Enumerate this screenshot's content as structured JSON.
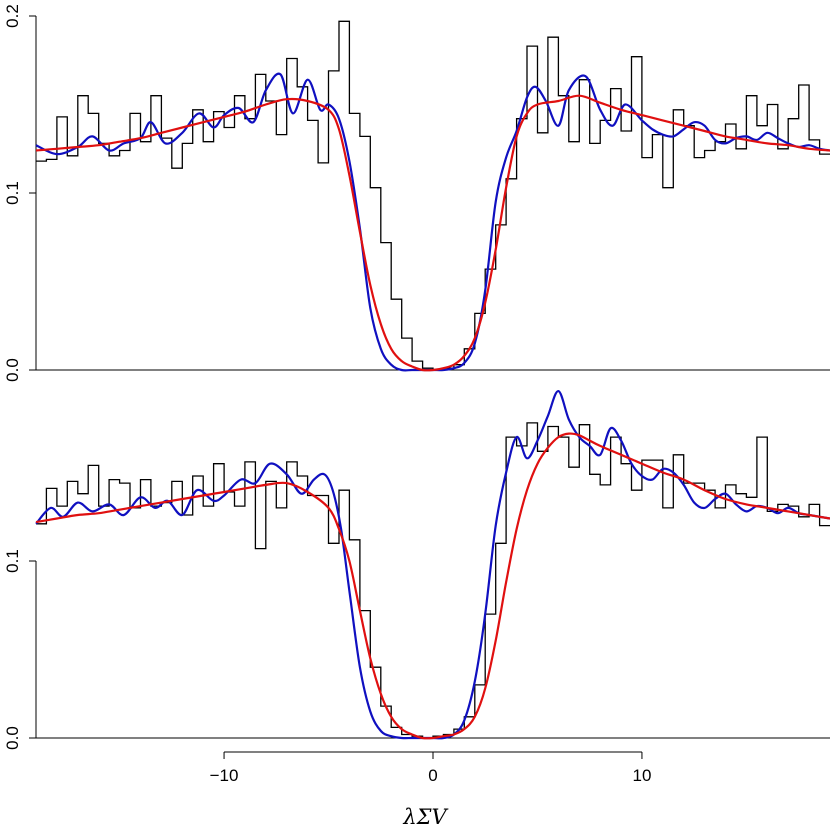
{
  "chart_data": [
    {
      "type": "line",
      "panel": "top",
      "ylim": [
        0,
        0.2
      ],
      "yticks": [
        0.0,
        0.1,
        0.2
      ],
      "ytick_labels": [
        "0.0",
        "0.1",
        "0.2"
      ],
      "xlim": [
        -19,
        19
      ],
      "grid": false,
      "series": [
        {
          "style": "step",
          "color": "#000000",
          "x": [
            -19,
            -18.5,
            -18,
            -17.5,
            -17,
            -16.5,
            -16,
            -15.5,
            -15,
            -14.5,
            -14,
            -13.5,
            -13,
            -12.5,
            -12,
            -11.5,
            -11,
            -10.5,
            -10,
            -9.5,
            -9,
            -8.5,
            -8,
            -7.5,
            -7,
            -6.5,
            -6,
            -5.5,
            -5,
            -4.5,
            -4,
            -3.5,
            -3,
            -2.5,
            -2,
            -1.5,
            -1,
            -0.5,
            0,
            0.5,
            1,
            1.5,
            2,
            2.5,
            3,
            3.5,
            4,
            4.5,
            5,
            5.5,
            6,
            6.5,
            7,
            7.5,
            8,
            8.5,
            9,
            9.5,
            10,
            10.5,
            11,
            11.5,
            12,
            12.5,
            13,
            13.5,
            14,
            14.5,
            15,
            15.5,
            16,
            16.5,
            17,
            17.5,
            18,
            18.5
          ],
          "y": [
            0.118,
            0.119,
            0.143,
            0.121,
            0.155,
            0.145,
            0.128,
            0.121,
            0.124,
            0.145,
            0.129,
            0.155,
            0.131,
            0.114,
            0.128,
            0.147,
            0.129,
            0.146,
            0.137,
            0.155,
            0.142,
            0.167,
            0.152,
            0.133,
            0.176,
            0.16,
            0.141,
            0.117,
            0.169,
            0.197,
            0.145,
            0.132,
            0.103,
            0.072,
            0.04,
            0.018,
            0.005,
            0.001,
            0.0,
            0.001,
            0.003,
            0.012,
            0.032,
            0.057,
            0.082,
            0.108,
            0.142,
            0.183,
            0.134,
            0.188,
            0.155,
            0.129,
            0.164,
            0.128,
            0.141,
            0.159,
            0.135,
            0.177,
            0.12,
            0.133,
            0.103,
            0.147,
            0.138,
            0.12,
            0.124,
            0.129,
            0.139,
            0.125,
            0.155,
            0.138,
            0.15,
            0.125,
            0.142,
            0.161,
            0.13,
            0.122
          ]
        },
        {
          "style": "smooth",
          "color": "#1010c0",
          "x": [
            -19,
            -18,
            -17,
            -16.3,
            -15.5,
            -14.8,
            -14,
            -13.5,
            -12.8,
            -12,
            -11.2,
            -10.5,
            -10,
            -9.3,
            -8.6,
            -8,
            -7.3,
            -6.7,
            -6,
            -5.4,
            -5,
            -4.5,
            -4,
            -3.5,
            -3,
            -2.5,
            -2,
            -1.5,
            -1,
            -0.5,
            0,
            0.5,
            1,
            1.5,
            2,
            2.5,
            3,
            3.5,
            4,
            4.5,
            4.9,
            5.4,
            6,
            6.5,
            7.3,
            8,
            8.6,
            9.2,
            10,
            10.5,
            11,
            11.5,
            12,
            12.5,
            13,
            13.5,
            14,
            14.5,
            15,
            15.5,
            16,
            16.5,
            17,
            17.5,
            18,
            18.5,
            19
          ],
          "y": [
            0.127,
            0.122,
            0.126,
            0.132,
            0.124,
            0.128,
            0.131,
            0.14,
            0.128,
            0.134,
            0.145,
            0.137,
            0.144,
            0.148,
            0.14,
            0.158,
            0.167,
            0.145,
            0.164,
            0.147,
            0.15,
            0.142,
            0.118,
            0.08,
            0.035,
            0.012,
            0.003,
            0.0,
            0.0,
            0.0,
            0.0,
            0.0,
            0.001,
            0.004,
            0.015,
            0.045,
            0.095,
            0.12,
            0.135,
            0.154,
            0.16,
            0.152,
            0.138,
            0.158,
            0.166,
            0.147,
            0.138,
            0.15,
            0.141,
            0.136,
            0.133,
            0.132,
            0.136,
            0.14,
            0.138,
            0.13,
            0.128,
            0.131,
            0.132,
            0.13,
            0.134,
            0.131,
            0.128,
            0.126,
            0.127,
            0.125,
            0.124
          ]
        },
        {
          "style": "smooth",
          "color": "#e01010",
          "x": [
            -19,
            -18,
            -17,
            -16,
            -15,
            -14,
            -13,
            -12,
            -11,
            -10,
            -9,
            -8,
            -7,
            -6,
            -5,
            -4.5,
            -4,
            -3.5,
            -3,
            -2.5,
            -2,
            -1.5,
            -1,
            -0.5,
            0,
            0.5,
            1,
            1.5,
            2,
            2.5,
            3,
            3.5,
            4,
            4.5,
            5,
            6,
            7,
            8,
            9,
            10,
            11,
            12,
            13,
            14,
            15,
            16,
            17,
            18,
            19
          ],
          "y": [
            0.124,
            0.125,
            0.126,
            0.127,
            0.129,
            0.131,
            0.134,
            0.137,
            0.14,
            0.143,
            0.146,
            0.15,
            0.153,
            0.152,
            0.147,
            0.136,
            0.11,
            0.078,
            0.048,
            0.026,
            0.012,
            0.005,
            0.002,
            0.0,
            0.0,
            0.001,
            0.003,
            0.008,
            0.018,
            0.038,
            0.068,
            0.103,
            0.132,
            0.145,
            0.15,
            0.152,
            0.155,
            0.151,
            0.147,
            0.144,
            0.141,
            0.138,
            0.135,
            0.132,
            0.13,
            0.128,
            0.127,
            0.125,
            0.124
          ]
        }
      ]
    },
    {
      "type": "line",
      "panel": "bottom",
      "ylim": [
        0,
        0.2
      ],
      "yticks": [
        0.0,
        0.1
      ],
      "ytick_labels": [
        "0.0",
        "0.1"
      ],
      "xlim": [
        -19,
        19
      ],
      "xticks": [
        -10,
        0,
        10
      ],
      "xtick_labels": [
        "−10",
        "0",
        "10"
      ],
      "xlabel": "λΣV",
      "grid": false,
      "series": [
        {
          "style": "step",
          "color": "#000000",
          "x": [
            -19,
            -18.5,
            -18,
            -17.5,
            -17,
            -16.5,
            -16,
            -15.5,
            -15,
            -14.5,
            -14,
            -13.5,
            -13,
            -12.5,
            -12,
            -11.5,
            -11,
            -10.5,
            -10,
            -9.5,
            -9,
            -8.5,
            -8,
            -7.5,
            -7,
            -6.5,
            -6,
            -5.5,
            -5,
            -4.5,
            -4,
            -3.5,
            -3,
            -2.5,
            -2,
            -1.5,
            -1,
            -0.5,
            0,
            0.5,
            1,
            1.5,
            2,
            2.5,
            3,
            3.5,
            4,
            4.5,
            5,
            5.5,
            6,
            6.5,
            7,
            7.5,
            8,
            8.5,
            9,
            9.5,
            10,
            10.5,
            11,
            11.5,
            12,
            12.5,
            13,
            13.5,
            14,
            14.5,
            15,
            15.5,
            16,
            16.5,
            17,
            17.5,
            18,
            18.5
          ],
          "y": [
            0.121,
            0.141,
            0.131,
            0.145,
            0.138,
            0.154,
            0.131,
            0.146,
            0.144,
            0.13,
            0.146,
            0.131,
            0.133,
            0.145,
            0.126,
            0.148,
            0.131,
            0.155,
            0.139,
            0.131,
            0.156,
            0.107,
            0.145,
            0.13,
            0.156,
            0.148,
            0.137,
            0.137,
            0.11,
            0.14,
            0.112,
            0.072,
            0.04,
            0.018,
            0.006,
            0.002,
            0.001,
            0.0,
            0.001,
            0.002,
            0.005,
            0.012,
            0.03,
            0.07,
            0.11,
            0.17,
            0.165,
            0.178,
            0.162,
            0.176,
            0.17,
            0.153,
            0.177,
            0.149,
            0.143,
            0.17,
            0.155,
            0.14,
            0.157,
            0.157,
            0.13,
            0.16,
            0.144,
            0.144,
            0.14,
            0.13,
            0.143,
            0.138,
            0.136,
            0.17,
            0.128,
            0.132,
            0.131,
            0.125,
            0.132,
            0.12
          ]
        },
        {
          "style": "smooth",
          "color": "#1010c0",
          "x": [
            -19,
            -18.3,
            -17.7,
            -17,
            -16.3,
            -15.5,
            -14.8,
            -14,
            -13.3,
            -12.7,
            -12,
            -11.3,
            -10.5,
            -10,
            -9.2,
            -8.5,
            -7.8,
            -7,
            -6.3,
            -5.7,
            -5.2,
            -4.8,
            -4.4,
            -4,
            -3.5,
            -3,
            -2.5,
            -2,
            -1.5,
            -1,
            -0.5,
            0,
            0.5,
            1,
            1.5,
            2,
            2.5,
            3,
            3.5,
            4,
            4.5,
            5,
            5.5,
            6,
            6.5,
            7,
            7.5,
            8,
            8.5,
            9,
            9.5,
            10,
            10.5,
            11,
            11.5,
            12,
            12.5,
            13,
            13.5,
            14,
            14.5,
            15,
            15.5,
            16,
            16.5,
            17,
            17.5,
            18,
            19
          ],
          "y": [
            0.121,
            0.13,
            0.125,
            0.133,
            0.128,
            0.132,
            0.126,
            0.136,
            0.13,
            0.134,
            0.126,
            0.14,
            0.134,
            0.137,
            0.146,
            0.144,
            0.155,
            0.149,
            0.138,
            0.146,
            0.149,
            0.14,
            0.118,
            0.083,
            0.04,
            0.015,
            0.004,
            0.001,
            0.0,
            0.0,
            0.0,
            0.0,
            0.0,
            0.002,
            0.01,
            0.032,
            0.07,
            0.12,
            0.15,
            0.17,
            0.158,
            0.168,
            0.182,
            0.196,
            0.18,
            0.17,
            0.165,
            0.16,
            0.175,
            0.168,
            0.155,
            0.148,
            0.146,
            0.152,
            0.15,
            0.143,
            0.133,
            0.13,
            0.135,
            0.138,
            0.132,
            0.128,
            0.131,
            0.13,
            0.127,
            0.13,
            0.127,
            0.126,
            0.124
          ]
        },
        {
          "style": "smooth",
          "color": "#e01010",
          "x": [
            -19,
            -18,
            -17,
            -16,
            -15,
            -14,
            -13,
            -12,
            -11,
            -10,
            -9,
            -8,
            -7,
            -6,
            -5,
            -4.5,
            -4,
            -3.5,
            -3,
            -2.5,
            -2,
            -1.5,
            -1,
            -0.5,
            0,
            0.5,
            1,
            1.5,
            2,
            2.5,
            3,
            3.5,
            4,
            4.5,
            5,
            5.5,
            6,
            6.5,
            7,
            7.5,
            8,
            9,
            10,
            11,
            12,
            13,
            14,
            15,
            16,
            17,
            18,
            19
          ],
          "y": [
            0.122,
            0.124,
            0.126,
            0.127,
            0.129,
            0.131,
            0.133,
            0.135,
            0.137,
            0.139,
            0.141,
            0.143,
            0.144,
            0.139,
            0.13,
            0.118,
            0.1,
            0.072,
            0.045,
            0.025,
            0.012,
            0.005,
            0.002,
            0.0,
            0.0,
            0.001,
            0.002,
            0.005,
            0.012,
            0.028,
            0.055,
            0.088,
            0.118,
            0.14,
            0.155,
            0.164,
            0.17,
            0.172,
            0.171,
            0.168,
            0.165,
            0.16,
            0.155,
            0.15,
            0.146,
            0.14,
            0.135,
            0.132,
            0.13,
            0.128,
            0.126,
            0.124
          ]
        }
      ]
    }
  ]
}
